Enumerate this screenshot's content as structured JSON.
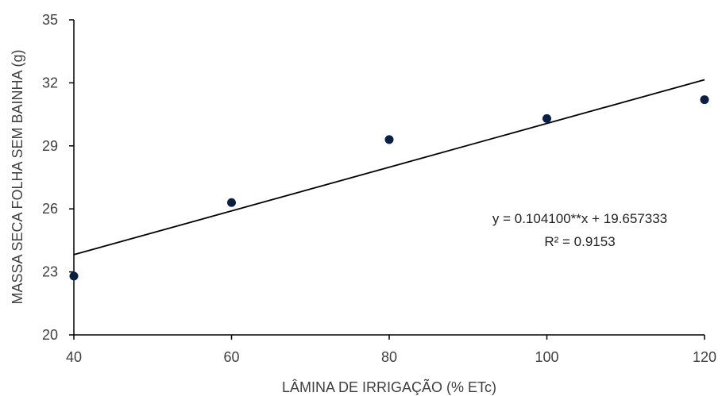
{
  "chart_data": {
    "type": "scatter",
    "title": "",
    "xlabel": "LÂMINA DE IRRIGAÇÃO (% ETc)",
    "ylabel": "MASSA SECA FOLHA SEM BAINHA (g)",
    "xlim": [
      40,
      120
    ],
    "ylim": [
      20,
      35
    ],
    "x_ticks": [
      "40",
      "60",
      "80",
      "100",
      "120"
    ],
    "y_ticks": [
      "20",
      "23",
      "26",
      "29",
      "32",
      "35"
    ],
    "points": [
      {
        "x": 40,
        "y": 22.8
      },
      {
        "x": 60,
        "y": 26.3
      },
      {
        "x": 80,
        "y": 29.3
      },
      {
        "x": 100,
        "y": 30.3
      },
      {
        "x": 120,
        "y": 31.2
      }
    ],
    "trendline": {
      "slope": 0.1041,
      "intercept": 19.657333
    },
    "equation_label": "y = 0.104100**x + 19.657333",
    "r2_label": "R² = 0.9153",
    "grid": false,
    "colors": {
      "points": "#0a1f44",
      "line": "#000000",
      "axis": "#000000"
    }
  }
}
